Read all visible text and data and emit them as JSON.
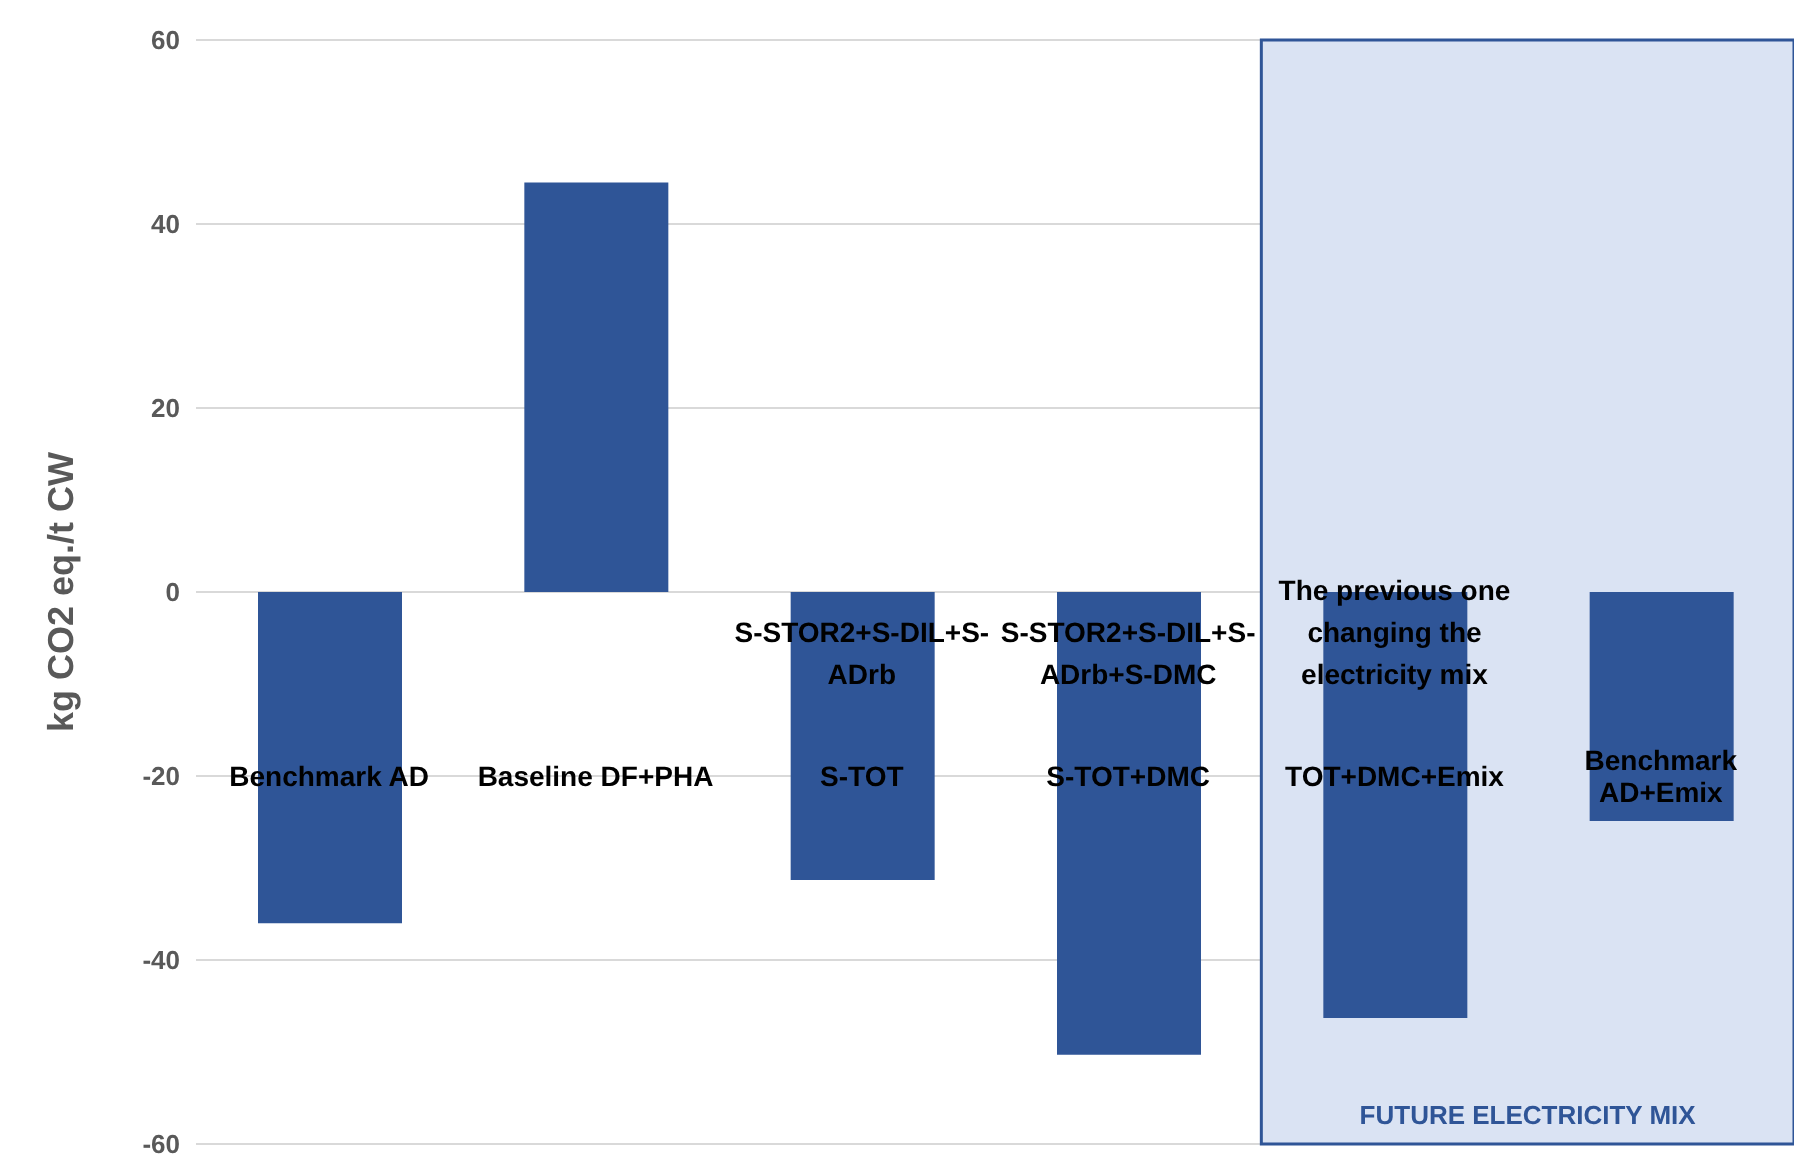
{
  "chart_data": {
    "type": "bar",
    "ylabel": "kg CO2 eq./t CW",
    "categories": [
      "Benchmark AD",
      "Baseline DF+PHA",
      "S-STOR2+S-DIL+S-ADrb\nS-TOT",
      "S-STOR2+S-DIL+S-ADrb+S-DMC\nS-TOT+DMC",
      "The previous one changing the electricity mix\nTOT+DMC+Emix",
      "Benchmark AD+Emix"
    ],
    "values": [
      -36,
      44.5,
      -31.3,
      -50.3,
      -46.3,
      -24.9
    ],
    "color": "#2f5597",
    "ylim": [
      -60,
      60
    ],
    "yticks": [
      -60,
      -40,
      -20,
      0,
      20,
      40,
      60
    ],
    "grid": "y",
    "bands": [
      {
        "axis": "x",
        "from": "The previous one changing the electricity mix\nTOT+DMC+Emix",
        "to": "Benchmark AD+Emix",
        "label": "FUTURE ELECTRICITY MIX",
        "color": "#dae3f3"
      }
    ]
  }
}
